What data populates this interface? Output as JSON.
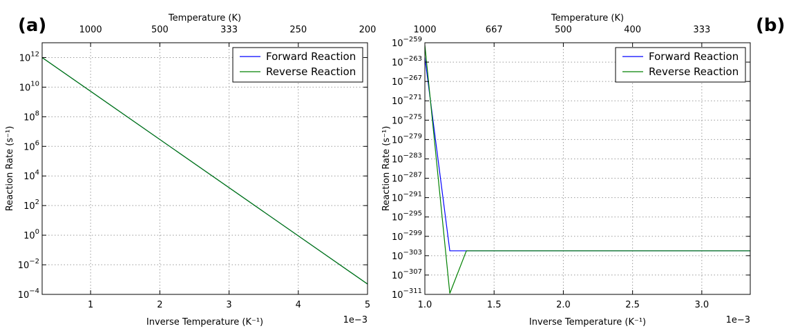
{
  "chart_data": [
    {
      "panel_label": "(a)",
      "type": "line",
      "xlabel": "Inverse Temperature (K⁻¹)",
      "x_offset_text": "1e−3",
      "ylabel": "Reaction Rate (s⁻¹)",
      "top_axis_label": "Temperature (K)",
      "top_ticks": [
        "1000",
        "500",
        "333",
        "250",
        "200"
      ],
      "x_ticks": [
        "1",
        "2",
        "3",
        "4",
        "5"
      ],
      "y_scale": "log",
      "y_tick_exponents": [
        "12",
        "10",
        "8",
        "6",
        "4",
        "2",
        "0",
        "-2",
        "-4"
      ],
      "xlim": [
        0.3,
        5.0
      ],
      "ylim_log10": [
        -4,
        13
      ],
      "grid": true,
      "legend_position": "top-right",
      "series": [
        {
          "name": "Forward Reaction",
          "color": "#0000ff",
          "x": [
            0.3,
            5.0
          ],
          "log10_y": [
            12.0,
            -3.3
          ]
        },
        {
          "name": "Reverse Reaction",
          "color": "#008000",
          "x": [
            0.3,
            5.0
          ],
          "log10_y": [
            12.0,
            -3.3
          ]
        }
      ]
    },
    {
      "panel_label": "(b)",
      "type": "line",
      "xlabel": "Inverse Temperature (K⁻¹)",
      "x_offset_text": "1e−3",
      "ylabel": "Reaction Rate (s⁻¹)",
      "top_axis_label": "Temperature (K)",
      "top_ticks": [
        "1000",
        "667",
        "500",
        "400",
        "333"
      ],
      "x_ticks": [
        "1.0",
        "1.5",
        "2.0",
        "2.5",
        "3.0"
      ],
      "y_scale": "log",
      "y_tick_exponents": [
        "-259",
        "-263",
        "-267",
        "-271",
        "-275",
        "-279",
        "-283",
        "-287",
        "-291",
        "-295",
        "-299",
        "-303",
        "-307",
        "-311"
      ],
      "xlim": [
        1.0,
        3.35
      ],
      "ylim_log10": [
        -311,
        -259
      ],
      "grid": true,
      "legend_position": "top-right",
      "series": [
        {
          "name": "Forward Reaction",
          "color": "#0000ff",
          "x": [
            1.0,
            1.18,
            1.3,
            3.35
          ],
          "log10_y": [
            -262,
            -302,
            -302,
            -302
          ]
        },
        {
          "name": "Reverse Reaction",
          "color": "#008000",
          "x": [
            1.0,
            1.18,
            1.3,
            3.35
          ],
          "log10_y": [
            -259.5,
            -310.8,
            -302,
            -302
          ]
        }
      ]
    }
  ]
}
